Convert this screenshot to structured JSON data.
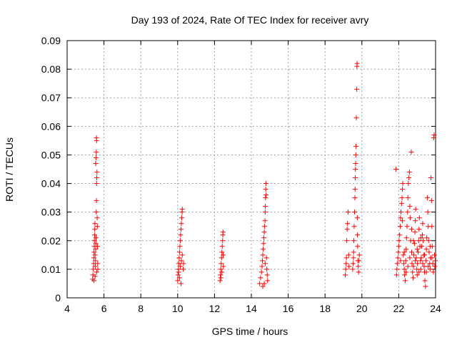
{
  "chart_data": {
    "type": "scatter",
    "title": "Day 193 of 2024, Rate Of TEC Index for receiver avry",
    "xlabel": "GPS time / hours",
    "ylabel": "ROTI / TECUs",
    "xlim": [
      4,
      24
    ],
    "ylim": [
      0,
      0.09
    ],
    "x_ticks": [
      4,
      6,
      8,
      10,
      12,
      14,
      16,
      18,
      20,
      22,
      24
    ],
    "x_tick_labels": [
      "4",
      "6",
      "8",
      "10",
      "12",
      "14",
      "16",
      "18",
      "20",
      "22",
      "24"
    ],
    "y_ticks": [
      0,
      0.01,
      0.02,
      0.03,
      0.04,
      0.05,
      0.06,
      0.07,
      0.08,
      0.09
    ],
    "y_tick_labels": [
      "0",
      "0.01",
      "0.02",
      "0.03",
      "0.04",
      "0.05",
      "0.06",
      "0.07",
      "0.08",
      "0.09"
    ],
    "grid": true,
    "marker": "+",
    "marker_color": "#ff0000",
    "series": [
      {
        "name": "ROTI",
        "points": [
          [
            5.38,
            0.0065
          ],
          [
            5.4,
            0.008
          ],
          [
            5.42,
            0.01
          ],
          [
            5.44,
            0.012
          ],
          [
            5.45,
            0.014
          ],
          [
            5.46,
            0.016
          ],
          [
            5.47,
            0.018
          ],
          [
            5.48,
            0.02
          ],
          [
            5.49,
            0.022
          ],
          [
            5.5,
            0.024
          ],
          [
            5.51,
            0.026
          ],
          [
            5.52,
            0.015
          ],
          [
            5.53,
            0.011
          ],
          [
            5.54,
            0.013
          ],
          [
            5.55,
            0.017
          ],
          [
            5.56,
            0.019
          ],
          [
            5.57,
            0.021
          ],
          [
            5.58,
            0.03
          ],
          [
            5.59,
            0.034
          ],
          [
            5.6,
            0.04
          ],
          [
            5.61,
            0.042
          ],
          [
            5.62,
            0.044
          ],
          [
            5.55,
            0.047
          ],
          [
            5.57,
            0.049
          ],
          [
            5.58,
            0.051
          ],
          [
            5.59,
            0.056
          ],
          [
            5.6,
            0.055
          ],
          [
            5.63,
            0.028
          ],
          [
            5.64,
            0.025
          ],
          [
            5.65,
            0.018
          ],
          [
            5.66,
            0.012
          ],
          [
            5.67,
            0.01
          ],
          [
            5.46,
            0.006
          ],
          [
            5.52,
            0.0075
          ],
          [
            5.6,
            0.009
          ],
          [
            10.0,
            0.006
          ],
          [
            10.02,
            0.008
          ],
          [
            10.04,
            0.01
          ],
          [
            10.06,
            0.012
          ],
          [
            10.08,
            0.014
          ],
          [
            10.1,
            0.016
          ],
          [
            10.12,
            0.018
          ],
          [
            10.14,
            0.02
          ],
          [
            10.16,
            0.022
          ],
          [
            10.18,
            0.024
          ],
          [
            10.2,
            0.026
          ],
          [
            10.22,
            0.028
          ],
          [
            10.24,
            0.03
          ],
          [
            10.25,
            0.031
          ],
          [
            10.1,
            0.007
          ],
          [
            10.15,
            0.011
          ],
          [
            10.2,
            0.013
          ],
          [
            10.25,
            0.015
          ],
          [
            10.3,
            0.01
          ],
          [
            10.32,
            0.012
          ],
          [
            10.05,
            0.009
          ],
          [
            10.18,
            0.005
          ],
          [
            12.3,
            0.006
          ],
          [
            12.32,
            0.008
          ],
          [
            12.34,
            0.01
          ],
          [
            12.36,
            0.012
          ],
          [
            12.38,
            0.014
          ],
          [
            12.4,
            0.016
          ],
          [
            12.42,
            0.018
          ],
          [
            12.44,
            0.02
          ],
          [
            12.45,
            0.022
          ],
          [
            12.46,
            0.023
          ],
          [
            12.47,
            0.015
          ],
          [
            12.48,
            0.011
          ],
          [
            12.35,
            0.007
          ],
          [
            12.4,
            0.009
          ],
          [
            14.45,
            0.005
          ],
          [
            14.5,
            0.007
          ],
          [
            14.55,
            0.009
          ],
          [
            14.58,
            0.011
          ],
          [
            14.6,
            0.013
          ],
          [
            14.62,
            0.015
          ],
          [
            14.64,
            0.017
          ],
          [
            14.66,
            0.019
          ],
          [
            14.68,
            0.021
          ],
          [
            14.7,
            0.023
          ],
          [
            14.72,
            0.025
          ],
          [
            14.74,
            0.027
          ],
          [
            14.75,
            0.03
          ],
          [
            14.76,
            0.032
          ],
          [
            14.77,
            0.035
          ],
          [
            14.78,
            0.038
          ],
          [
            14.79,
            0.04
          ],
          [
            14.8,
            0.036
          ],
          [
            14.82,
            0.014
          ],
          [
            14.84,
            0.01
          ],
          [
            14.86,
            0.008
          ],
          [
            14.88,
            0.006
          ],
          [
            14.62,
            0.004
          ],
          [
            14.7,
            0.005
          ],
          [
            14.75,
            0.012
          ],
          [
            19.1,
            0.008
          ],
          [
            19.12,
            0.01
          ],
          [
            19.14,
            0.012
          ],
          [
            19.16,
            0.014
          ],
          [
            19.18,
            0.02
          ],
          [
            19.2,
            0.024
          ],
          [
            19.22,
            0.026
          ],
          [
            19.25,
            0.03
          ],
          [
            19.28,
            0.015
          ],
          [
            19.3,
            0.011
          ],
          [
            19.5,
            0.01
          ],
          [
            19.52,
            0.012
          ],
          [
            19.54,
            0.014
          ],
          [
            19.55,
            0.016
          ],
          [
            19.56,
            0.02
          ],
          [
            19.58,
            0.025
          ],
          [
            19.6,
            0.03
          ],
          [
            19.62,
            0.035
          ],
          [
            19.63,
            0.038
          ],
          [
            19.64,
            0.042
          ],
          [
            19.65,
            0.045
          ],
          [
            19.66,
            0.047
          ],
          [
            19.67,
            0.05
          ],
          [
            19.68,
            0.053
          ],
          [
            19.7,
            0.063
          ],
          [
            19.72,
            0.073
          ],
          [
            19.73,
            0.081
          ],
          [
            19.74,
            0.082
          ],
          [
            19.75,
            0.028
          ],
          [
            19.76,
            0.022
          ],
          [
            19.77,
            0.018
          ],
          [
            19.78,
            0.013
          ],
          [
            19.8,
            0.011
          ],
          [
            19.82,
            0.009
          ],
          [
            19.84,
            0.013
          ],
          [
            19.86,
            0.015
          ],
          [
            21.85,
            0.045
          ],
          [
            21.88,
            0.008
          ],
          [
            21.9,
            0.01
          ],
          [
            21.92,
            0.012
          ],
          [
            21.95,
            0.014
          ],
          [
            21.98,
            0.016
          ],
          [
            22.0,
            0.018
          ],
          [
            22.02,
            0.02
          ],
          [
            22.05,
            0.022
          ],
          [
            22.08,
            0.025
          ],
          [
            22.1,
            0.028
          ],
          [
            22.12,
            0.03
          ],
          [
            22.15,
            0.033
          ],
          [
            22.18,
            0.035
          ],
          [
            22.2,
            0.038
          ],
          [
            22.22,
            0.04
          ],
          [
            22.25,
            0.015
          ],
          [
            22.28,
            0.012
          ],
          [
            22.3,
            0.01
          ],
          [
            22.32,
            0.008
          ],
          [
            22.35,
            0.006
          ],
          [
            22.38,
            0.013
          ],
          [
            22.4,
            0.017
          ],
          [
            22.42,
            0.021
          ],
          [
            22.45,
            0.025
          ],
          [
            22.48,
            0.03
          ],
          [
            22.5,
            0.035
          ],
          [
            22.52,
            0.04
          ],
          [
            22.55,
            0.042
          ],
          [
            22.58,
            0.044
          ],
          [
            22.6,
            0.032
          ],
          [
            22.62,
            0.028
          ],
          [
            22.65,
            0.02
          ],
          [
            22.68,
            0.051
          ],
          [
            22.7,
            0.016
          ],
          [
            22.72,
            0.012
          ],
          [
            22.75,
            0.009
          ],
          [
            22.78,
            0.007
          ],
          [
            22.8,
            0.011
          ],
          [
            22.82,
            0.015
          ],
          [
            22.85,
            0.019
          ],
          [
            22.88,
            0.023
          ],
          [
            22.9,
            0.027
          ],
          [
            22.92,
            0.031
          ],
          [
            22.95,
            0.014
          ],
          [
            22.98,
            0.01
          ],
          [
            23.0,
            0.008
          ],
          [
            23.02,
            0.012
          ],
          [
            23.05,
            0.016
          ],
          [
            23.08,
            0.02
          ],
          [
            23.1,
            0.024
          ],
          [
            23.12,
            0.028
          ],
          [
            23.15,
            0.018
          ],
          [
            23.18,
            0.013
          ],
          [
            23.2,
            0.01
          ],
          [
            23.22,
            0.014
          ],
          [
            23.25,
            0.018
          ],
          [
            23.28,
            0.022
          ],
          [
            23.3,
            0.026
          ],
          [
            23.32,
            0.02
          ],
          [
            23.35,
            0.015
          ],
          [
            23.38,
            0.011
          ],
          [
            23.4,
            0.009
          ],
          [
            23.42,
            0.006
          ],
          [
            23.45,
            0.004
          ],
          [
            23.48,
            0.013
          ],
          [
            23.5,
            0.017
          ],
          [
            23.52,
            0.021
          ],
          [
            23.55,
            0.035
          ],
          [
            23.58,
            0.03
          ],
          [
            23.6,
            0.025
          ],
          [
            23.62,
            0.02
          ],
          [
            23.65,
            0.016
          ],
          [
            23.68,
            0.012
          ],
          [
            23.7,
            0.01
          ],
          [
            23.72,
            0.014
          ],
          [
            23.75,
            0.042
          ],
          [
            23.78,
            0.034
          ],
          [
            23.8,
            0.025
          ],
          [
            23.82,
            0.018
          ],
          [
            23.85,
            0.012
          ],
          [
            23.88,
            0.009
          ],
          [
            23.9,
            0.056
          ],
          [
            23.92,
            0.057
          ],
          [
            23.94,
            0.015
          ],
          [
            23.96,
            0.011
          ],
          [
            23.98,
            0.013
          ],
          [
            22.2,
            0.027
          ],
          [
            22.4,
            0.009
          ],
          [
            22.6,
            0.014
          ],
          [
            22.8,
            0.02
          ],
          [
            23.0,
            0.017
          ],
          [
            23.2,
            0.021
          ],
          [
            23.4,
            0.015
          ],
          [
            23.6,
            0.011
          ],
          [
            23.8,
            0.014
          ],
          [
            22.1,
            0.013
          ],
          [
            22.3,
            0.016
          ],
          [
            22.5,
            0.011
          ],
          [
            22.7,
            0.024
          ],
          [
            22.9,
            0.013
          ],
          [
            23.1,
            0.009
          ],
          [
            23.3,
            0.012
          ],
          [
            23.5,
            0.009
          ],
          [
            23.7,
            0.018
          ]
        ]
      }
    ]
  }
}
